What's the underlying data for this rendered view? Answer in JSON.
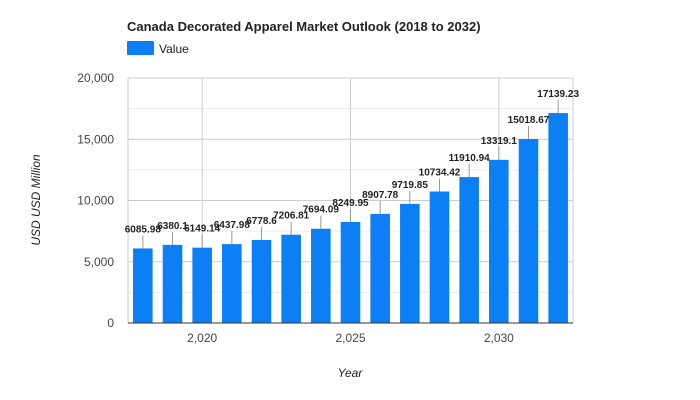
{
  "chart_data": {
    "type": "bar",
    "title": "Canada Decorated Apparel Market Outlook (2018 to 2032)",
    "xlabel": "Year",
    "ylabel": "USD USD Million",
    "legend": {
      "entries": [
        "Value"
      ],
      "position": "top-left"
    },
    "colors": {
      "bar": "#0d7ff5",
      "grid": "#cccccc",
      "axis": "#333333"
    },
    "ylim": [
      0,
      20000
    ],
    "y_ticks": [
      0,
      5000,
      10000,
      15000,
      20000
    ],
    "y_tick_labels": [
      "0",
      "5,000",
      "10,000",
      "15,000",
      "20,000"
    ],
    "x_ticks": [
      2020,
      2025,
      2030
    ],
    "x_tick_labels": [
      "2,020",
      "2,025",
      "2,030"
    ],
    "grid": true,
    "categories": [
      2018,
      2019,
      2020,
      2021,
      2022,
      2023,
      2024,
      2025,
      2026,
      2027,
      2028,
      2029,
      2030,
      2031,
      2032
    ],
    "series": [
      {
        "name": "Value",
        "values": [
          6085.98,
          6380.1,
          6149.14,
          6437.98,
          6778.6,
          7206.81,
          7694.09,
          8249.95,
          8907.78,
          9719.85,
          10734.42,
          11910.94,
          13319.1,
          15018.67,
          17139.23
        ]
      }
    ],
    "data_labels": [
      "6085.98",
      "6380.1",
      "6149.14",
      "6437.98",
      "6778.6",
      "7206.81",
      "7694.09",
      "8249.95",
      "8907.78",
      "9719.85",
      "10734.42",
      "11910.94",
      "13319.1",
      "15018.67",
      "17139.23"
    ]
  }
}
